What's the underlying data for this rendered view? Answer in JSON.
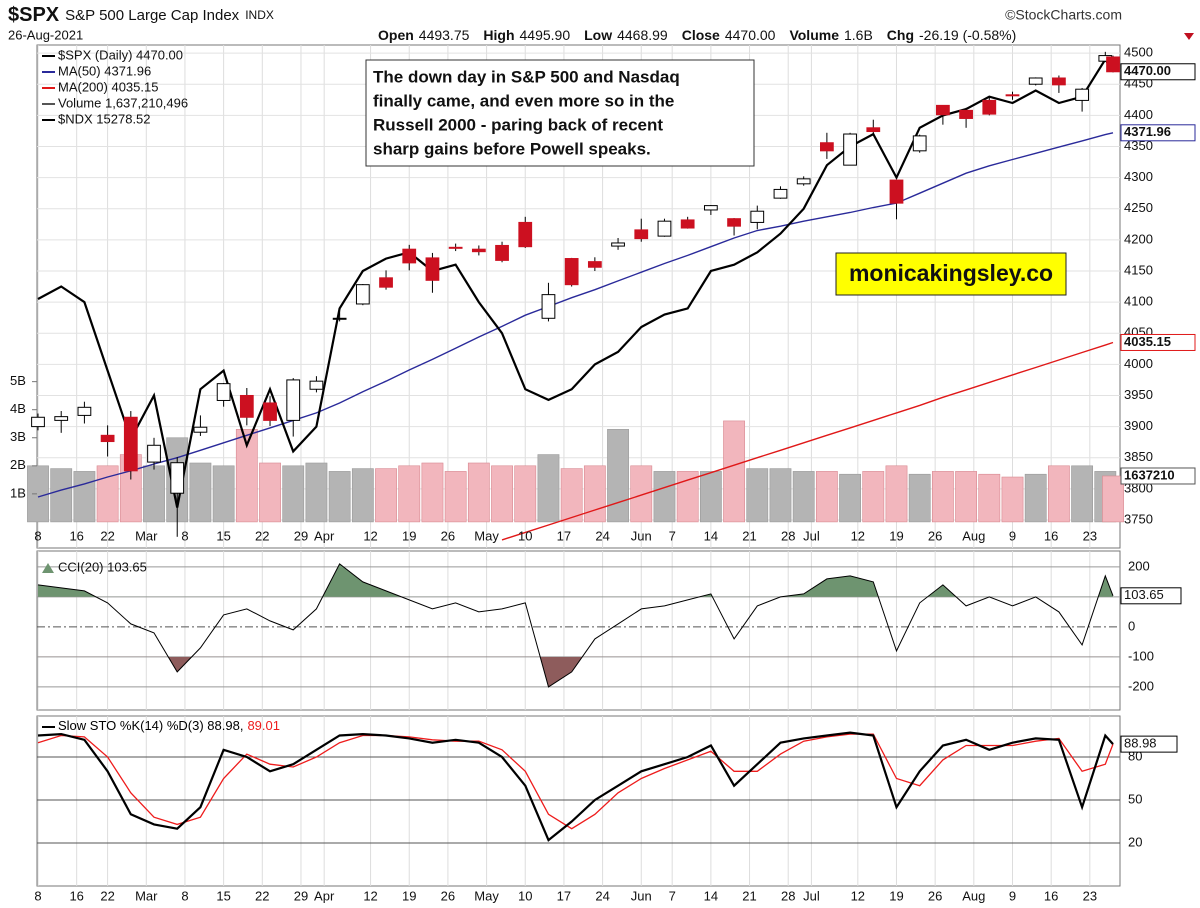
{
  "header": {
    "symbol": "$SPX",
    "name": "S&P 500 Large Cap Index",
    "exchange": "INDX",
    "date": "26-Aug-2021",
    "source": "©StockCharts.com",
    "stats": [
      {
        "label": "Open",
        "value": "4493.75"
      },
      {
        "label": "High",
        "value": "4495.90"
      },
      {
        "label": "Low",
        "value": "4468.99"
      },
      {
        "label": "Close",
        "value": "4470.00"
      },
      {
        "label": "Volume",
        "value": "1.6B"
      },
      {
        "label": "Chg",
        "value": "-26.19 (-0.58%)"
      }
    ]
  },
  "chart_data": [
    {
      "type": "candlestick",
      "name": "$SPX (Daily) 4470.00",
      "last_label": "4470.00",
      "up_color": "#ffffff",
      "down_color": "#cc1020",
      "x": [
        0,
        3,
        6,
        9,
        12,
        15,
        18,
        21,
        24,
        27,
        30,
        33,
        36,
        39,
        42,
        45,
        48,
        51,
        54,
        57,
        60,
        63,
        66,
        69,
        72,
        75,
        78,
        81,
        84,
        87,
        90,
        93,
        96,
        99,
        102,
        105,
        108,
        111,
        114,
        117,
        120,
        123,
        126,
        129,
        132,
        135,
        138,
        139
      ],
      "xlim": [
        -0.13,
        139.9
      ],
      "xticks": [
        {
          "value": 0,
          "label": "8"
        },
        {
          "value": 5,
          "label": "16"
        },
        {
          "value": 9,
          "label": "22"
        },
        {
          "value": 14,
          "label": "Mar"
        },
        {
          "value": 19,
          "label": "8"
        },
        {
          "value": 24,
          "label": "15"
        },
        {
          "value": 29,
          "label": "22"
        },
        {
          "value": 34,
          "label": "29"
        },
        {
          "value": 37,
          "label": "Apr"
        },
        {
          "value": 43,
          "label": "12"
        },
        {
          "value": 48,
          "label": "19"
        },
        {
          "value": 53,
          "label": "26"
        },
        {
          "value": 58,
          "label": "May"
        },
        {
          "value": 63,
          "label": "10"
        },
        {
          "value": 68,
          "label": "17"
        },
        {
          "value": 73,
          "label": "24"
        },
        {
          "value": 78,
          "label": "Jun"
        },
        {
          "value": 82,
          "label": "7"
        },
        {
          "value": 87,
          "label": "14"
        },
        {
          "value": 92,
          "label": "21"
        },
        {
          "value": 97,
          "label": "28"
        },
        {
          "value": 100,
          "label": "Jul"
        },
        {
          "value": 106,
          "label": "12"
        },
        {
          "value": 111,
          "label": "19"
        },
        {
          "value": 116,
          "label": "26"
        },
        {
          "value": 121,
          "label": "Aug"
        },
        {
          "value": 126,
          "label": "9"
        },
        {
          "value": 131,
          "label": "16"
        },
        {
          "value": 136,
          "label": "23"
        }
      ],
      "open": [
        3900,
        3910,
        3918,
        3886,
        3915,
        3843,
        3793,
        3891,
        3942,
        3950,
        3938,
        3910,
        3960,
        4074,
        4097,
        4139,
        4185,
        4171,
        4188,
        4185,
        4191,
        4228,
        4074,
        4170,
        4165,
        4190,
        4216,
        4206,
        4232,
        4248,
        4234,
        4228,
        4267,
        4290,
        4356,
        4320,
        4380,
        4296,
        4343,
        4416,
        4408,
        4424,
        4433,
        4450,
        4460,
        4424,
        4487,
        4493.75
      ],
      "high": [
        3921,
        3925,
        3940,
        3902,
        3925,
        3882,
        3851,
        3918,
        3970,
        3962,
        3949,
        3978,
        3981,
        4086,
        4129,
        4151,
        4192,
        4179,
        4194,
        4191,
        4197,
        4237,
        4131,
        4171,
        4172,
        4203,
        4234,
        4234,
        4237,
        4256,
        4235,
        4255,
        4286,
        4302,
        4372,
        4372,
        4393,
        4296,
        4369,
        4416,
        4412,
        4429,
        4438,
        4461,
        4464,
        4444,
        4502,
        4495.9
      ],
      "low": [
        3894,
        3890,
        3905,
        3852,
        3815,
        3831,
        3723,
        3885,
        3932,
        3902,
        3901,
        3884,
        3955,
        4069,
        4095,
        4120,
        4151,
        4115,
        4182,
        4175,
        4164,
        4187,
        4069,
        4125,
        4150,
        4184,
        4197,
        4205,
        4218,
        4240,
        4207,
        4217,
        4266,
        4287,
        4330,
        4320,
        4370,
        4233,
        4340,
        4385,
        4380,
        4400,
        4425,
        4448,
        4436,
        4406,
        4486,
        4468.99
      ],
      "close": [
        3915,
        3916,
        3931,
        3876,
        3829,
        3870,
        3842,
        3899,
        3969,
        3915,
        3910,
        3975,
        3973,
        4074,
        4128,
        4124,
        4163,
        4135,
        4187,
        4181,
        4167,
        4189,
        4112,
        4128,
        4156,
        4195,
        4202,
        4230,
        4219,
        4255,
        4222,
        4246,
        4281,
        4298,
        4343,
        4370,
        4374,
        4259,
        4367,
        4401,
        4395,
        4402,
        4432,
        4460,
        4449,
        4442,
        4496,
        4470
      ],
      "ylim": [
        3705,
        4513
      ],
      "yticks": [
        3750,
        3800,
        3850,
        3900,
        3950,
        4000,
        4050,
        4100,
        4150,
        4200,
        4250,
        4300,
        4350,
        4400,
        4450,
        4500
      ],
      "grid": true,
      "series": [
        {
          "name": "MA(50) 4371.96",
          "last_label": "4371.96",
          "color": "#2a2a9a",
          "values": [
            3787,
            3798,
            3808,
            3819,
            3829,
            3840,
            3850,
            3862,
            3874,
            3886,
            3898,
            3910,
            3922,
            3938,
            3956,
            3973,
            3991,
            4008,
            4026,
            4044,
            4061,
            4079,
            4093,
            4107,
            4120,
            4134,
            4148,
            4162,
            4175,
            4189,
            4203,
            4215,
            4222,
            4230,
            4237,
            4244,
            4252,
            4259,
            4275,
            4291,
            4307,
            4319,
            4329,
            4339,
            4349,
            4359,
            4369,
            4371.96
          ]
        },
        {
          "name": "MA(200) 4035.15",
          "last_label": "4035.15",
          "color": "#e01818",
          "values": [
            null,
            null,
            null,
            null,
            null,
            null,
            null,
            null,
            null,
            null,
            null,
            null,
            null,
            null,
            null,
            null,
            null,
            null,
            null,
            null,
            3718,
            3730,
            3742,
            3754,
            3766,
            3778,
            3790,
            3802,
            3814,
            3826,
            3838,
            3850,
            3862,
            3874,
            3886,
            3898,
            3910,
            3922,
            3934,
            3947,
            3959,
            3971,
            3983,
            3995,
            4007,
            4019,
            4031,
            4035.15
          ]
        },
        {
          "name": "$NDX 15278.52",
          "color": "#000000",
          "axis": "y2",
          "values": [
            13576,
            13670,
            13553,
            13040,
            12528,
            12854,
            12015,
            12901,
            13040,
            12481,
            12901,
            12435,
            12621,
            13506,
            13786,
            13879,
            13926,
            13786,
            13833,
            13553,
            13320,
            12901,
            12821,
            12901,
            13087,
            13180,
            13367,
            13460,
            13506,
            13786,
            13833,
            13926,
            14066,
            14252,
            14578,
            14718,
            14811,
            14485,
            14858,
            14951,
            14998,
            15091,
            15044,
            15137,
            15044,
            15091,
            15370,
            15278.52
          ]
        }
      ],
      "y2lim": [
        11712,
        15478
      ],
      "volume": {
        "name": "Volume 1,637,210,496",
        "last_label": "1637210",
        "up_color": "#b4b4b4",
        "down_color": "#f2b6bd",
        "values": [
          2.0,
          1.9,
          1.8,
          2.0,
          2.4,
          2.0,
          3.0,
          2.1,
          2.0,
          3.3,
          2.1,
          2.0,
          2.1,
          1.8,
          1.9,
          1.9,
          2.0,
          2.1,
          1.8,
          2.1,
          2.0,
          2.0,
          2.4,
          1.9,
          2.0,
          3.3,
          2.0,
          1.8,
          1.8,
          1.8,
          3.6,
          1.9,
          1.9,
          1.8,
          1.8,
          1.7,
          1.8,
          2.0,
          1.7,
          1.8,
          1.8,
          1.7,
          1.6,
          1.7,
          2.0,
          2.0,
          1.8,
          1.637
        ],
        "ylim": [
          -0.93,
          17
        ],
        "yticks": [
          {
            "value": 1,
            "label": "1B"
          },
          {
            "value": 2,
            "label": "2B"
          },
          {
            "value": 3,
            "label": "3B"
          },
          {
            "value": 4,
            "label": "4B"
          },
          {
            "value": 5,
            "label": "5B"
          }
        ]
      },
      "annotation": [
        "The down day in S&P 500 and Nasdaq",
        "finally came, and even more so in the",
        "Russell 2000 - paring back of recent",
        "sharp gains before Powell speaks."
      ],
      "watermark": "monicakingsley.co"
    },
    {
      "type": "cci",
      "name": "CCI(20) 103.65",
      "last_label": "103.65",
      "color": "#000000",
      "above_color": "#6e9470",
      "below_color": "#8e5c5c",
      "values": [
        140,
        130,
        120,
        80,
        10,
        -20,
        -150,
        -70,
        40,
        60,
        20,
        -10,
        60,
        210,
        150,
        120,
        90,
        60,
        80,
        50,
        60,
        80,
        -200,
        -150,
        -40,
        10,
        60,
        70,
        90,
        110,
        -40,
        70,
        100,
        110,
        160,
        170,
        150,
        -80,
        80,
        140,
        70,
        100,
        70,
        100,
        50,
        -60,
        170,
        103.65
      ],
      "ylim": [
        -277,
        253
      ],
      "yticks": [
        200,
        100,
        0,
        -100,
        -200
      ]
    },
    {
      "type": "line",
      "last_label": "88.98",
      "series": [
        {
          "name": "Slow STO %K(14) %D(3) 88.98,",
          "color": "#000000",
          "values": [
            95,
            96,
            92,
            70,
            40,
            33,
            30,
            45,
            85,
            80,
            70,
            75,
            85,
            95,
            96,
            95,
            93,
            90,
            92,
            90,
            80,
            60,
            22,
            35,
            50,
            60,
            70,
            75,
            80,
            88,
            60,
            75,
            90,
            93,
            95,
            97,
            95,
            45,
            70,
            88,
            92,
            85,
            90,
            93,
            92,
            45,
            95,
            88.98
          ]
        },
        {
          "name": "89.01",
          "color": "#ee1c1c",
          "values": [
            90,
            95,
            94,
            80,
            55,
            38,
            33,
            38,
            65,
            82,
            75,
            73,
            80,
            90,
            95,
            95,
            94,
            92,
            91,
            91,
            85,
            70,
            40,
            30,
            40,
            55,
            65,
            72,
            78,
            84,
            70,
            70,
            82,
            91,
            94,
            96,
            96,
            65,
            60,
            78,
            88,
            88,
            88,
            91,
            93,
            70,
            75,
            89.01
          ]
        }
      ],
      "ylim": [
        -10,
        108.6
      ],
      "yticks": [
        80,
        50,
        20
      ]
    }
  ]
}
